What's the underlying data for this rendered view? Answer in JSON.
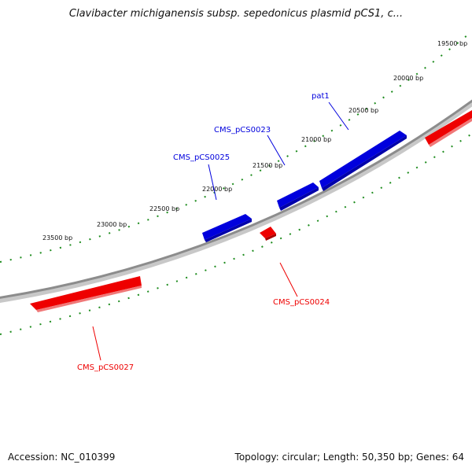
{
  "title": "Clavibacter michiganensis subsp. sepedonicus plasmid pCS1, c...",
  "footer": {
    "accession": "Accession: NC_010399",
    "summary": "Topology: circular; Length: 50,350 bp; Genes: 64"
  },
  "colors": {
    "forward": "#0000dd",
    "reverse": "#ee0000",
    "backbone": "#8c8c8c",
    "ticks": "#1e8c1e"
  },
  "ruler": [
    "19500 bp",
    "20000 bp",
    "20500 bp",
    "21000 bp",
    "21500 bp",
    "22000 bp",
    "22500 bp",
    "23000 bp",
    "23500 bp"
  ],
  "genes": [
    {
      "name": "pat1",
      "strand": "forward"
    },
    {
      "name": "CMS_pCS0023",
      "strand": "forward"
    },
    {
      "name": "CMS_pCS0025",
      "strand": "forward"
    },
    {
      "name": "CMS_pCS0024",
      "strand": "reverse"
    },
    {
      "name": "CMS_pCS0027",
      "strand": "reverse"
    }
  ]
}
